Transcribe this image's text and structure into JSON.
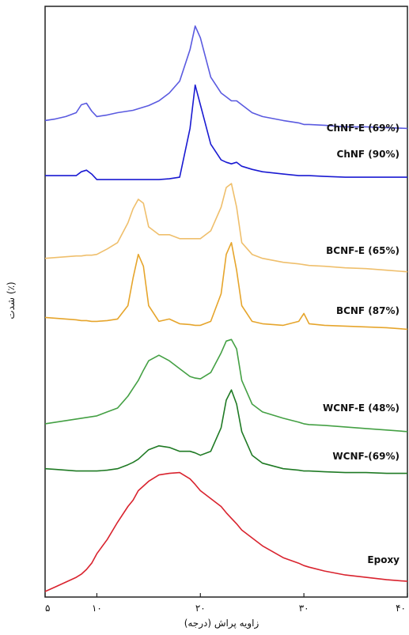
{
  "chart_data": {
    "type": "line",
    "x_label": "زاویه پراش (درجه)",
    "y_label": "شدت (٪)",
    "xlim": [
      5,
      40
    ],
    "ylim": [
      0,
      750
    ],
    "xticks": [
      {
        "value": 5,
        "label": "۵"
      },
      {
        "value": 10,
        "label": "۱۰"
      },
      {
        "value": 20,
        "label": "۲۰"
      },
      {
        "value": 30,
        "label": "۳۰"
      },
      {
        "value": 40,
        "label": "۴۰"
      }
    ],
    "x": [
      5,
      6,
      7,
      8,
      8.5,
      9,
      9.5,
      10,
      11,
      12,
      13,
      13.5,
      14,
      14.5,
      15,
      16,
      17,
      18,
      19,
      19.5,
      20,
      21,
      22,
      22.5,
      23,
      23.5,
      24,
      25,
      26,
      28,
      29.5,
      30,
      30.5,
      32,
      34,
      36,
      38,
      40
    ],
    "series": [
      {
        "name": "ChNF-E (69%)",
        "color": "#5a5ae0",
        "values": [
          605,
          607,
          610,
          615,
          625,
          627,
          617,
          610,
          612,
          615,
          617,
          618,
          620,
          622,
          624,
          630,
          640,
          655,
          695,
          725,
          710,
          660,
          640,
          635,
          630,
          630,
          625,
          615,
          610,
          605,
          602,
          600,
          600,
          599,
          597,
          597,
          596,
          595
        ]
      },
      {
        "name": "ChNF (90%)",
        "color": "#1a1ad2",
        "values": [
          535,
          535,
          535,
          535,
          540,
          542,
          537,
          530,
          530,
          530,
          530,
          530,
          530,
          530,
          530,
          530,
          531,
          533,
          595,
          650,
          625,
          575,
          555,
          552,
          550,
          552,
          547,
          543,
          540,
          537,
          535,
          535,
          535,
          534,
          533,
          533,
          533,
          533
        ]
      },
      {
        "name": "BCNF-E (65%)",
        "color": "#efbf6c",
        "values": [
          430,
          431,
          432,
          433,
          433,
          434,
          434,
          435,
          442,
          450,
          475,
          493,
          505,
          500,
          470,
          460,
          460,
          455,
          455,
          455,
          455,
          465,
          495,
          520,
          525,
          495,
          450,
          435,
          430,
          425,
          423,
          422,
          421,
          420,
          418,
          417,
          415,
          413
        ]
      },
      {
        "name": "BCNF (87%)",
        "color": "#e6a52c",
        "values": [
          355,
          354,
          353,
          352,
          351,
          351,
          350,
          350,
          351,
          353,
          370,
          405,
          435,
          420,
          370,
          350,
          353,
          347,
          346,
          345,
          345,
          350,
          385,
          435,
          450,
          415,
          370,
          350,
          347,
          345,
          350,
          360,
          347,
          345,
          344,
          343,
          342,
          340
        ]
      },
      {
        "name": "WCNF-E (48%)",
        "color": "#44a044",
        "values": [
          220,
          222,
          224,
          226,
          227,
          228,
          229,
          230,
          235,
          240,
          255,
          265,
          275,
          288,
          300,
          307,
          300,
          290,
          280,
          278,
          277,
          285,
          310,
          325,
          327,
          315,
          275,
          245,
          235,
          227,
          222,
          220,
          219,
          218,
          216,
          214,
          212,
          210
        ]
      },
      {
        "name": "WCNF-(69%)",
        "color": "#1f7a24",
        "values": [
          163,
          162,
          161,
          160,
          160,
          160,
          160,
          160,
          161,
          163,
          168,
          171,
          175,
          181,
          187,
          192,
          190,
          185,
          185,
          183,
          180,
          185,
          215,
          250,
          263,
          245,
          210,
          180,
          170,
          163,
          161,
          160,
          160,
          159,
          158,
          158,
          157,
          157
        ]
      },
      {
        "name": "Epoxy",
        "color": "#d9232e",
        "values": [
          7,
          13,
          19,
          25,
          29,
          35,
          43,
          55,
          73,
          95,
          115,
          123,
          135,
          141,
          147,
          155,
          157,
          158,
          150,
          143,
          135,
          125,
          115,
          107,
          100,
          93,
          85,
          75,
          65,
          50,
          43,
          40,
          38,
          33,
          28,
          25,
          22,
          20
        ]
      }
    ]
  }
}
